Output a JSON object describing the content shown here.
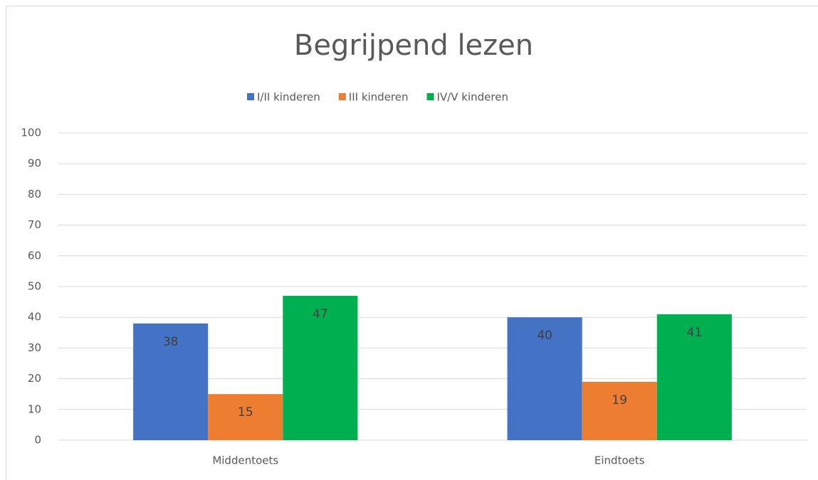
{
  "chart_data": {
    "type": "bar",
    "title": "Begrijpend lezen",
    "categories": [
      "Middentoets",
      "Eindtoets"
    ],
    "series": [
      {
        "name": "I/II kinderen",
        "color": "#4472c4",
        "values": [
          38,
          40
        ]
      },
      {
        "name": "III kinderen",
        "color": "#ed7d31",
        "values": [
          15,
          19
        ]
      },
      {
        "name": "IV/V kinderen",
        "color": "#00b050",
        "values": [
          47,
          41
        ]
      }
    ],
    "ylim": [
      0,
      100
    ],
    "yticks": [
      0,
      10,
      20,
      30,
      40,
      50,
      60,
      70,
      80,
      90,
      100
    ],
    "grid": true,
    "legend": "top",
    "data_labels": true
  }
}
